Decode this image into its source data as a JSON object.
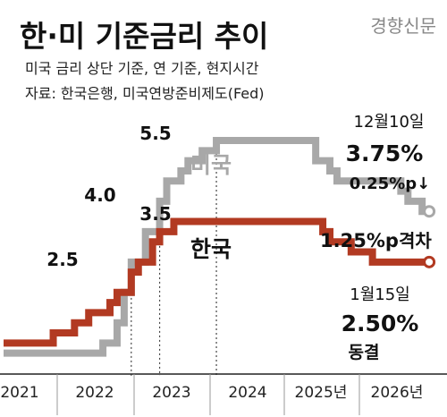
{
  "brand": "경향신문",
  "title": "한·미 기준금리 추이",
  "subtitle_line1": "미국 금리 상단 기준, 연 기준, 현지시간",
  "subtitle_line2": "자료: 한국은행, 미국연방준비제도(Fed)",
  "chart_data": {
    "type": "line",
    "x_axis": {
      "tick_labels": [
        "2021",
        "2022",
        "2023",
        "2024",
        "2025년",
        "2026년"
      ]
    },
    "y_axis": {
      "unit": "%",
      "shown": false
    },
    "level_labels": [
      "2.5",
      "4.0",
      "5.5",
      "3.5"
    ],
    "series": [
      {
        "name": "미국",
        "color": "#a8a8a8",
        "points": [
          [
            "2021-01",
            0.25
          ],
          [
            "2022-03",
            0.5
          ],
          [
            "2022-05",
            1.0
          ],
          [
            "2022-06",
            1.75
          ],
          [
            "2022-07",
            2.5
          ],
          [
            "2022-09",
            3.25
          ],
          [
            "2022-11",
            4.0
          ],
          [
            "2022-12",
            4.5
          ],
          [
            "2023-02",
            4.75
          ],
          [
            "2023-03",
            5.0
          ],
          [
            "2023-05",
            5.25
          ],
          [
            "2023-07",
            5.5
          ],
          [
            "2024-09",
            5.0
          ],
          [
            "2024-11",
            4.75
          ],
          [
            "2024-12",
            4.5
          ],
          [
            "2025-09",
            4.25
          ],
          [
            "2025-10",
            4.0
          ],
          [
            "2025-12",
            3.75
          ],
          [
            "2026-01",
            3.75
          ]
        ]
      },
      {
        "name": "한국",
        "color": "#b23a22",
        "points": [
          [
            "2021-01",
            0.5
          ],
          [
            "2021-08",
            0.75
          ],
          [
            "2021-11",
            1.0
          ],
          [
            "2022-01",
            1.25
          ],
          [
            "2022-04",
            1.5
          ],
          [
            "2022-05",
            1.75
          ],
          [
            "2022-07",
            2.25
          ],
          [
            "2022-08",
            2.5
          ],
          [
            "2022-10",
            3.0
          ],
          [
            "2022-11",
            3.25
          ],
          [
            "2023-01",
            3.5
          ],
          [
            "2024-10",
            3.25
          ],
          [
            "2024-11",
            3.0
          ],
          [
            "2025-02",
            2.75
          ],
          [
            "2025-05",
            2.5
          ],
          [
            "2026-01",
            2.5
          ]
        ]
      }
    ],
    "annotations": {
      "us_date": "12월10일",
      "us_rate": "3.75%",
      "us_change": "0.25%p↓",
      "gap_value": "1.25%p",
      "gap_label": "격차",
      "kr_date": "1월15일",
      "kr_rate": "2.50%",
      "kr_status": "동결"
    }
  }
}
